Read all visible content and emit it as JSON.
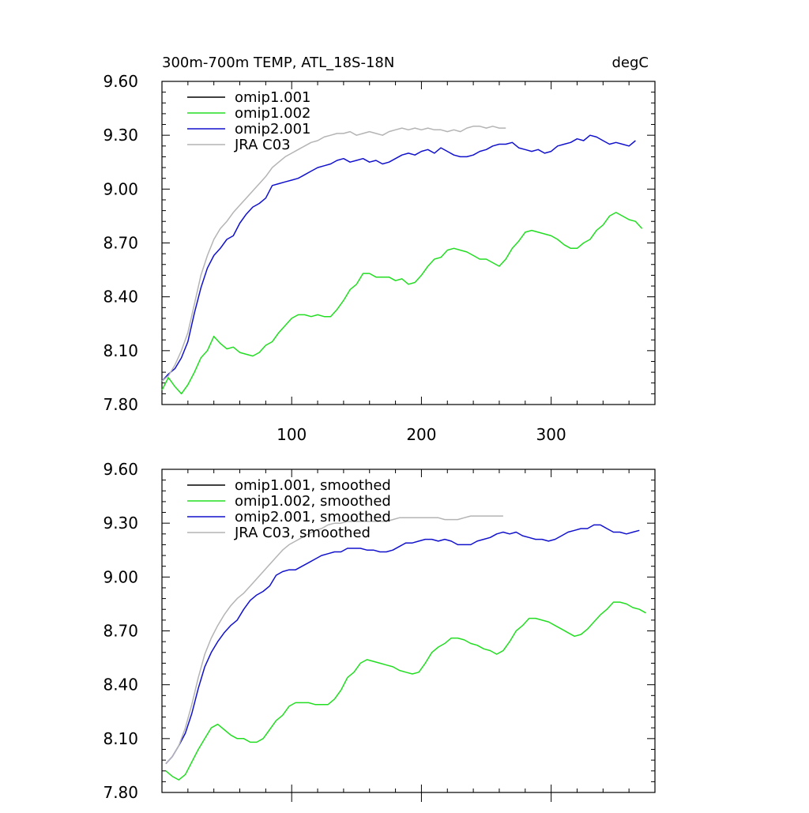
{
  "chart_data": [
    {
      "type": "line",
      "title": "300m-700m TEMP, ATL_18S-18N",
      "units": "degC",
      "xlabel": "",
      "ylabel": "",
      "xlim": [
        0,
        380
      ],
      "ylim": [
        7.8,
        9.6
      ],
      "yticks": [
        "9.60",
        "9.30",
        "9.00",
        "8.70",
        "8.40",
        "8.10",
        "7.80"
      ],
      "xticks": [
        "100",
        "200",
        "300"
      ],
      "grid": false,
      "legend_position": "top-left",
      "series": [
        {
          "name": "omip1.001",
          "color": "#000000",
          "x": [],
          "values": []
        },
        {
          "name": "omip1.002",
          "color": "#22dd22",
          "x": [
            0,
            5,
            10,
            15,
            20,
            25,
            30,
            35,
            40,
            45,
            50,
            55,
            60,
            65,
            70,
            75,
            80,
            85,
            90,
            95,
            100,
            105,
            110,
            115,
            120,
            125,
            130,
            135,
            140,
            145,
            150,
            155,
            160,
            165,
            170,
            175,
            180,
            185,
            190,
            195,
            200,
            205,
            210,
            215,
            220,
            225,
            230,
            235,
            240,
            245,
            250,
            255,
            260,
            265,
            270,
            275,
            280,
            285,
            290,
            295,
            300,
            305,
            310,
            315,
            320,
            325,
            330,
            335,
            340,
            345,
            350,
            355,
            360,
            365,
            370
          ],
          "values": [
            7.88,
            7.95,
            7.9,
            7.86,
            7.91,
            7.98,
            8.06,
            8.1,
            8.18,
            8.14,
            8.11,
            8.12,
            8.09,
            8.08,
            8.07,
            8.09,
            8.13,
            8.15,
            8.2,
            8.24,
            8.28,
            8.3,
            8.3,
            8.29,
            8.3,
            8.29,
            8.29,
            8.33,
            8.38,
            8.44,
            8.47,
            8.53,
            8.53,
            8.51,
            8.51,
            8.51,
            8.49,
            8.5,
            8.47,
            8.48,
            8.52,
            8.57,
            8.61,
            8.62,
            8.66,
            8.67,
            8.66,
            8.65,
            8.63,
            8.61,
            8.61,
            8.59,
            8.57,
            8.61,
            8.67,
            8.71,
            8.76,
            8.77,
            8.76,
            8.75,
            8.74,
            8.72,
            8.69,
            8.67,
            8.67,
            8.7,
            8.72,
            8.77,
            8.8,
            8.85,
            8.87,
            8.85,
            8.83,
            8.82,
            8.78
          ]
        },
        {
          "name": "omip2.001",
          "color": "#1111cc",
          "x": [
            0,
            5,
            10,
            15,
            20,
            25,
            30,
            35,
            40,
            45,
            50,
            55,
            60,
            65,
            70,
            75,
            80,
            85,
            90,
            95,
            100,
            105,
            110,
            115,
            120,
            125,
            130,
            135,
            140,
            145,
            150,
            155,
            160,
            165,
            170,
            175,
            180,
            185,
            190,
            195,
            200,
            205,
            210,
            215,
            220,
            225,
            230,
            235,
            240,
            245,
            250,
            255,
            260,
            265,
            270,
            275,
            280,
            285,
            290,
            295,
            300,
            305,
            310,
            315,
            320,
            325,
            330,
            335,
            340,
            345,
            350,
            355,
            360,
            365
          ],
          "values": [
            7.93,
            7.97,
            8.0,
            8.06,
            8.15,
            8.31,
            8.45,
            8.56,
            8.63,
            8.67,
            8.72,
            8.74,
            8.81,
            8.86,
            8.9,
            8.92,
            8.95,
            9.02,
            9.03,
            9.04,
            9.05,
            9.06,
            9.08,
            9.1,
            9.12,
            9.13,
            9.14,
            9.16,
            9.17,
            9.15,
            9.16,
            9.17,
            9.15,
            9.16,
            9.14,
            9.15,
            9.17,
            9.19,
            9.2,
            9.19,
            9.21,
            9.22,
            9.2,
            9.23,
            9.21,
            9.19,
            9.18,
            9.18,
            9.19,
            9.21,
            9.22,
            9.24,
            9.25,
            9.25,
            9.26,
            9.23,
            9.22,
            9.21,
            9.22,
            9.2,
            9.21,
            9.24,
            9.25,
            9.26,
            9.28,
            9.27,
            9.3,
            9.29,
            9.27,
            9.25,
            9.26,
            9.25,
            9.24,
            9.27
          ]
        },
        {
          "name": "JRA C03",
          "color": "#b4b4b4",
          "x": [
            0,
            5,
            10,
            15,
            20,
            25,
            30,
            35,
            40,
            45,
            50,
            55,
            60,
            65,
            70,
            75,
            80,
            85,
            90,
            95,
            100,
            105,
            110,
            115,
            120,
            125,
            130,
            135,
            140,
            145,
            150,
            155,
            160,
            165,
            170,
            175,
            180,
            185,
            190,
            195,
            200,
            205,
            210,
            215,
            220,
            225,
            230,
            235,
            240,
            245,
            250,
            255,
            260,
            265
          ],
          "values": [
            7.93,
            7.96,
            8.02,
            8.1,
            8.2,
            8.36,
            8.52,
            8.63,
            8.72,
            8.78,
            8.82,
            8.87,
            8.91,
            8.95,
            8.99,
            9.03,
            9.07,
            9.12,
            9.15,
            9.18,
            9.2,
            9.22,
            9.24,
            9.26,
            9.27,
            9.29,
            9.3,
            9.31,
            9.31,
            9.32,
            9.3,
            9.31,
            9.32,
            9.31,
            9.3,
            9.32,
            9.33,
            9.34,
            9.33,
            9.34,
            9.33,
            9.34,
            9.33,
            9.33,
            9.32,
            9.33,
            9.32,
            9.34,
            9.35,
            9.35,
            9.34,
            9.35,
            9.34,
            9.34
          ]
        }
      ]
    },
    {
      "type": "line",
      "title": "",
      "units": "",
      "xlabel": "",
      "ylabel": "",
      "xlim": [
        0,
        380
      ],
      "ylim": [
        7.8,
        9.6
      ],
      "yticks": [
        "9.60",
        "9.30",
        "9.00",
        "8.70",
        "8.40",
        "8.10",
        "7.80"
      ],
      "xticks": [],
      "grid": false,
      "legend_position": "top-left",
      "series": [
        {
          "name": "omip1.001, smoothed",
          "color": "#000000",
          "x": [],
          "values": []
        },
        {
          "name": "omip1.002, smoothed",
          "color": "#22dd22",
          "x": [
            3,
            8,
            13,
            18,
            23,
            28,
            33,
            38,
            43,
            48,
            53,
            58,
            63,
            68,
            73,
            78,
            83,
            88,
            93,
            98,
            103,
            108,
            113,
            118,
            123,
            128,
            133,
            138,
            143,
            148,
            153,
            158,
            163,
            168,
            173,
            178,
            183,
            188,
            193,
            198,
            203,
            208,
            213,
            218,
            223,
            228,
            233,
            238,
            243,
            248,
            253,
            258,
            263,
            268,
            273,
            278,
            283,
            288,
            293,
            298,
            303,
            308,
            313,
            318,
            323,
            328,
            333,
            338,
            343,
            348,
            353,
            358,
            363,
            368,
            373
          ],
          "values": [
            7.92,
            7.89,
            7.87,
            7.9,
            7.97,
            8.04,
            8.1,
            8.16,
            8.18,
            8.15,
            8.12,
            8.1,
            8.1,
            8.08,
            8.08,
            8.1,
            8.15,
            8.2,
            8.23,
            8.28,
            8.3,
            8.3,
            8.3,
            8.29,
            8.29,
            8.29,
            8.32,
            8.37,
            8.44,
            8.47,
            8.52,
            8.54,
            8.53,
            8.52,
            8.51,
            8.5,
            8.48,
            8.47,
            8.46,
            8.47,
            8.52,
            8.58,
            8.61,
            8.63,
            8.66,
            8.66,
            8.65,
            8.63,
            8.62,
            8.6,
            8.59,
            8.57,
            8.59,
            8.64,
            8.7,
            8.73,
            8.77,
            8.77,
            8.76,
            8.75,
            8.73,
            8.71,
            8.69,
            8.67,
            8.68,
            8.71,
            8.75,
            8.79,
            8.82,
            8.86,
            8.86,
            8.85,
            8.83,
            8.82,
            8.8
          ]
        },
        {
          "name": "omip2.001, smoothed",
          "color": "#1111cc",
          "x": [
            3,
            8,
            13,
            18,
            23,
            28,
            33,
            38,
            43,
            48,
            53,
            58,
            63,
            68,
            73,
            78,
            83,
            88,
            93,
            98,
            103,
            108,
            113,
            118,
            123,
            128,
            133,
            138,
            143,
            148,
            153,
            158,
            163,
            168,
            173,
            178,
            183,
            188,
            193,
            198,
            203,
            208,
            213,
            218,
            223,
            228,
            233,
            238,
            243,
            248,
            253,
            258,
            263,
            268,
            273,
            278,
            283,
            288,
            293,
            298,
            303,
            308,
            313,
            318,
            323,
            328,
            333,
            338,
            343,
            348,
            353,
            358,
            363,
            368
          ],
          "values": [
            7.96,
            8.0,
            8.06,
            8.13,
            8.24,
            8.38,
            8.5,
            8.58,
            8.64,
            8.69,
            8.73,
            8.76,
            8.82,
            8.87,
            8.9,
            8.92,
            8.95,
            9.01,
            9.03,
            9.04,
            9.04,
            9.06,
            9.08,
            9.1,
            9.12,
            9.13,
            9.14,
            9.14,
            9.16,
            9.16,
            9.16,
            9.15,
            9.15,
            9.14,
            9.14,
            9.15,
            9.17,
            9.19,
            9.19,
            9.2,
            9.21,
            9.21,
            9.2,
            9.21,
            9.2,
            9.18,
            9.18,
            9.18,
            9.2,
            9.21,
            9.22,
            9.24,
            9.25,
            9.24,
            9.25,
            9.23,
            9.22,
            9.21,
            9.21,
            9.2,
            9.21,
            9.23,
            9.25,
            9.26,
            9.27,
            9.27,
            9.29,
            9.29,
            9.27,
            9.25,
            9.25,
            9.24,
            9.25,
            9.26
          ]
        },
        {
          "name": "JRA C03, smoothed",
          "color": "#b4b4b4",
          "x": [
            3,
            8,
            13,
            18,
            23,
            28,
            33,
            38,
            43,
            48,
            53,
            58,
            63,
            68,
            73,
            78,
            83,
            88,
            93,
            98,
            103,
            108,
            113,
            118,
            123,
            128,
            133,
            138,
            143,
            148,
            153,
            158,
            163,
            168,
            173,
            178,
            183,
            188,
            193,
            198,
            203,
            208,
            213,
            218,
            223,
            228,
            233,
            238,
            243,
            248,
            253,
            258,
            263
          ],
          "values": [
            7.96,
            8.0,
            8.06,
            8.16,
            8.29,
            8.44,
            8.57,
            8.66,
            8.73,
            8.79,
            8.84,
            8.88,
            8.91,
            8.95,
            8.99,
            9.03,
            9.07,
            9.11,
            9.15,
            9.18,
            9.2,
            9.22,
            9.24,
            9.26,
            9.27,
            9.29,
            9.3,
            9.3,
            9.31,
            9.31,
            9.31,
            9.31,
            9.31,
            9.31,
            9.31,
            9.32,
            9.33,
            9.33,
            9.33,
            9.33,
            9.33,
            9.33,
            9.33,
            9.32,
            9.32,
            9.32,
            9.33,
            9.34,
            9.34,
            9.34,
            9.34,
            9.34,
            9.34
          ]
        }
      ]
    }
  ]
}
